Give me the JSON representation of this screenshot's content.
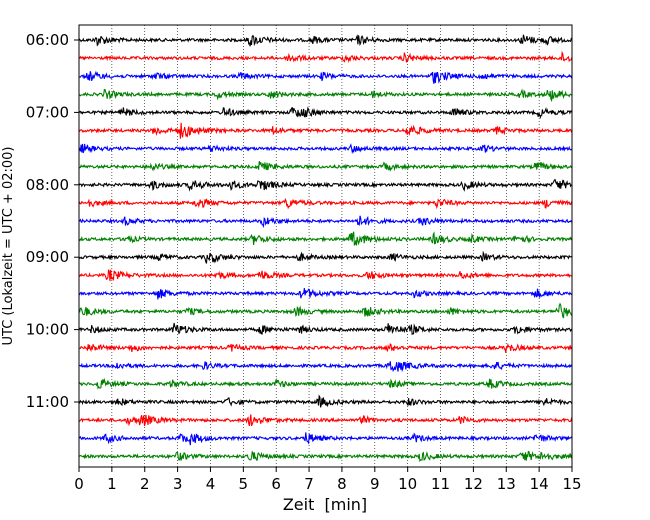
{
  "chart_data": {
    "type": "line",
    "subtype": "helicorder",
    "xlabel": "Zeit  [min]",
    "ylabel": "UTC (Lokalzeit = UTC + 02:00)",
    "xlim": [
      0,
      15
    ],
    "xticks": [
      "0",
      "1",
      "2",
      "3",
      "4",
      "5",
      "6",
      "7",
      "8",
      "9",
      "10",
      "11",
      "12",
      "13",
      "14",
      "15"
    ],
    "yticks": [
      "06:00",
      "07:00",
      "08:00",
      "09:00",
      "10:00",
      "11:00"
    ],
    "row_minutes": 15,
    "grid": {
      "x_dotted": true
    },
    "colors": [
      "#000000",
      "#ff0000",
      "#0000ff",
      "#008000"
    ],
    "rows": [
      {
        "start": "06:00",
        "color": "#000000",
        "events": [
          [
            0.55,
            0.7
          ],
          [
            5.2,
            0.8
          ],
          [
            7.1,
            0.5
          ],
          [
            8.5,
            0.6
          ],
          [
            13.5,
            0.7
          ],
          [
            14.2,
            0.5
          ]
        ]
      },
      {
        "start": "06:15",
        "color": "#ff0000",
        "events": [
          [
            6.4,
            0.6
          ],
          [
            8.1,
            0.5
          ],
          [
            9.9,
            0.6
          ],
          [
            14.7,
            0.6
          ]
        ]
      },
      {
        "start": "06:30",
        "color": "#0000ff",
        "events": [
          [
            0.3,
            0.7
          ],
          [
            2.3,
            0.5
          ],
          [
            4.9,
            0.5
          ],
          [
            7.4,
            0.5
          ],
          [
            10.8,
            0.9
          ],
          [
            12.2,
            0.5
          ]
        ]
      },
      {
        "start": "06:45",
        "color": "#008000",
        "events": [
          [
            0.8,
            0.6
          ],
          [
            4.2,
            0.5
          ],
          [
            5.8,
            0.6
          ],
          [
            8.9,
            0.5
          ],
          [
            13.4,
            0.5
          ],
          [
            14.3,
            0.8
          ]
        ]
      },
      {
        "start": "07:00",
        "color": "#000000",
        "events": [
          [
            1.3,
            0.6
          ],
          [
            4.4,
            0.6
          ],
          [
            6.5,
            0.7
          ],
          [
            6.8,
            0.5
          ],
          [
            11.4,
            0.6
          ],
          [
            14.0,
            0.6
          ]
        ]
      },
      {
        "start": "07:15",
        "color": "#ff0000",
        "events": [
          [
            2.3,
            0.6
          ],
          [
            3.1,
            1.0
          ],
          [
            5.9,
            0.5
          ],
          [
            10.0,
            0.8
          ],
          [
            12.7,
            0.5
          ]
        ]
      },
      {
        "start": "07:30",
        "color": "#0000ff",
        "events": [
          [
            0.1,
            0.6
          ],
          [
            4.0,
            0.5
          ],
          [
            8.3,
            0.5
          ],
          [
            12.3,
            0.5
          ]
        ]
      },
      {
        "start": "07:45",
        "color": "#008000",
        "events": [
          [
            2.2,
            0.5
          ],
          [
            5.5,
            0.7
          ],
          [
            9.3,
            0.5
          ],
          [
            13.9,
            0.6
          ]
        ]
      },
      {
        "start": "08:00",
        "color": "#000000",
        "events": [
          [
            2.2,
            0.6
          ],
          [
            3.4,
            0.7
          ],
          [
            4.6,
            0.6
          ],
          [
            5.5,
            0.8
          ],
          [
            11.7,
            0.6
          ],
          [
            14.5,
            0.8
          ]
        ]
      },
      {
        "start": "08:15",
        "color": "#ff0000",
        "events": [
          [
            0.3,
            0.5
          ],
          [
            3.6,
            0.7
          ],
          [
            6.3,
            0.7
          ],
          [
            10.9,
            0.6
          ],
          [
            14.2,
            0.6
          ]
        ]
      },
      {
        "start": "08:30",
        "color": "#0000ff",
        "events": [
          [
            1.4,
            0.5
          ],
          [
            5.6,
            0.6
          ],
          [
            8.5,
            0.7
          ],
          [
            10.4,
            0.6
          ]
        ]
      },
      {
        "start": "08:45",
        "color": "#008000",
        "events": [
          [
            1.4,
            0.5
          ],
          [
            5.3,
            0.7
          ],
          [
            8.3,
            1.0
          ],
          [
            10.8,
            0.7
          ],
          [
            11.9,
            0.5
          ],
          [
            13.3,
            0.6
          ]
        ]
      },
      {
        "start": "09:00",
        "color": "#000000",
        "events": [
          [
            2.4,
            0.5
          ],
          [
            3.9,
            0.8
          ],
          [
            6.7,
            0.5
          ],
          [
            9.5,
            0.5
          ],
          [
            12.3,
            0.5
          ]
        ]
      },
      {
        "start": "09:15",
        "color": "#ff0000",
        "events": [
          [
            0.9,
            0.8
          ],
          [
            4.2,
            0.5
          ],
          [
            5.5,
            0.7
          ],
          [
            8.8,
            0.6
          ],
          [
            11.6,
            0.5
          ]
        ]
      },
      {
        "start": "09:30",
        "color": "#0000ff",
        "events": [
          [
            2.4,
            0.7
          ],
          [
            6.8,
            0.8
          ],
          [
            10.2,
            0.5
          ],
          [
            13.9,
            0.6
          ]
        ]
      },
      {
        "start": "09:45",
        "color": "#008000",
        "events": [
          [
            0.1,
            0.7
          ],
          [
            3.3,
            0.5
          ],
          [
            6.6,
            0.6
          ],
          [
            8.7,
            0.7
          ],
          [
            11.3,
            0.5
          ],
          [
            14.6,
            1.0
          ]
        ]
      },
      {
        "start": "10:00",
        "color": "#000000",
        "events": [
          [
            0.4,
            0.5
          ],
          [
            2.9,
            0.8
          ],
          [
            5.5,
            0.6
          ],
          [
            6.7,
            0.5
          ],
          [
            9.4,
            0.8
          ],
          [
            10.1,
            0.5
          ],
          [
            13.3,
            0.6
          ]
        ]
      },
      {
        "start": "10:15",
        "color": "#ff0000",
        "events": [
          [
            0.3,
            0.6
          ],
          [
            1.6,
            0.5
          ],
          [
            4.6,
            0.5
          ],
          [
            9.4,
            0.5
          ],
          [
            13.0,
            0.6
          ]
        ]
      },
      {
        "start": "10:30",
        "color": "#0000ff",
        "events": [
          [
            1.1,
            0.5
          ],
          [
            3.8,
            0.5
          ],
          [
            9.5,
            1.0
          ],
          [
            12.6,
            0.6
          ]
        ]
      },
      {
        "start": "10:45",
        "color": "#008000",
        "events": [
          [
            0.6,
            0.7
          ],
          [
            2.8,
            0.5
          ],
          [
            6.0,
            0.5
          ],
          [
            9.5,
            0.5
          ],
          [
            12.5,
            0.6
          ]
        ]
      },
      {
        "start": "11:00",
        "color": "#000000",
        "events": [
          [
            1.2,
            0.5
          ],
          [
            4.5,
            0.5
          ],
          [
            7.3,
            0.7
          ],
          [
            10.0,
            0.5
          ],
          [
            14.1,
            0.6
          ]
        ]
      },
      {
        "start": "11:15",
        "color": "#ff0000",
        "events": [
          [
            1.5,
            0.5
          ],
          [
            1.9,
            0.8
          ],
          [
            5.2,
            0.8
          ],
          [
            8.6,
            0.5
          ],
          [
            11.6,
            0.5
          ]
        ]
      },
      {
        "start": "11:30",
        "color": "#0000ff",
        "events": [
          [
            0.8,
            0.6
          ],
          [
            3.1,
            0.6
          ],
          [
            3.4,
            0.6
          ],
          [
            6.9,
            0.7
          ],
          [
            10.2,
            0.5
          ],
          [
            13.9,
            0.6
          ]
        ]
      },
      {
        "start": "11:45",
        "color": "#008000",
        "events": [
          [
            3.0,
            0.6
          ],
          [
            5.2,
            0.7
          ],
          [
            10.4,
            0.6
          ],
          [
            13.5,
            0.8
          ],
          [
            14.1,
            0.5
          ]
        ]
      }
    ]
  }
}
